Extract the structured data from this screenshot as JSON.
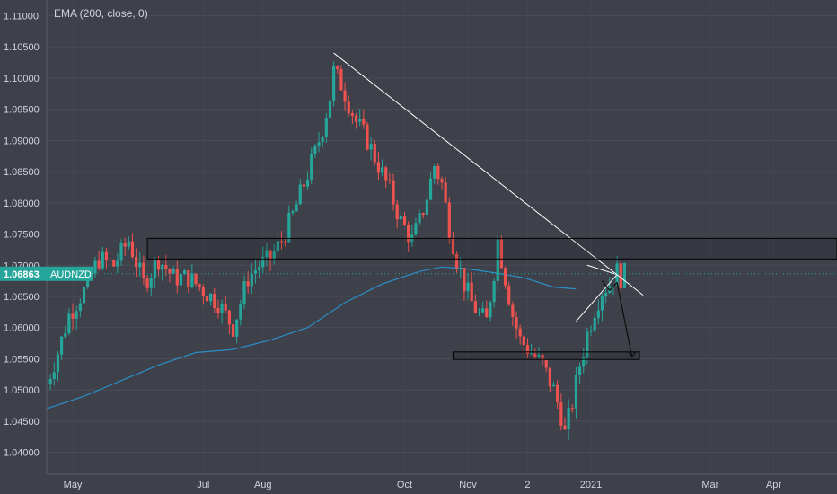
{
  "indicator": {
    "label": "EMA (200, close, 0)"
  },
  "chart_data": {
    "type": "candlestick",
    "symbol": "AUDNZD",
    "last_price": 1.06863,
    "y_ticks": [
      1.04,
      1.045,
      1.05,
      1.055,
      1.06,
      1.065,
      1.07,
      1.075,
      1.08,
      1.085,
      1.09,
      1.095,
      1.1,
      1.105,
      1.11
    ],
    "y_tick_labels": [
      "1.04000",
      "1.04500",
      "1.05000",
      "1.05500",
      "1.06000",
      "1.06500",
      "1.07000",
      "1.07500",
      "1.08000",
      "1.08500",
      "1.09000",
      "1.09500",
      "1.10000",
      "1.10500",
      "1.11000"
    ],
    "ylim": [
      1.0365,
      1.1125
    ],
    "x_ticks": [
      {
        "label": "May",
        "idx": 7
      },
      {
        "label": "Jul",
        "idx": 42
      },
      {
        "label": "Aug",
        "idx": 58
      },
      {
        "label": "Oct",
        "idx": 96
      },
      {
        "label": "Nov",
        "idx": 113
      },
      {
        "label": "2",
        "idx": 129
      },
      {
        "label": "2021",
        "idx": 146
      },
      {
        "label": "Mar",
        "idx": 178
      },
      {
        "label": "Apr",
        "idx": 195
      }
    ],
    "x_range": [
      0,
      212
    ],
    "colors": {
      "up": "#26a69a",
      "down": "#ef5350",
      "ema": "#2b8fc9",
      "drawing": "#ffffff",
      "price_tag": "#26a69a"
    },
    "ema_200": [
      [
        0,
        1.047
      ],
      [
        10,
        1.049
      ],
      [
        20,
        1.0515
      ],
      [
        30,
        1.054
      ],
      [
        40,
        1.056
      ],
      [
        50,
        1.0565
      ],
      [
        60,
        1.058
      ],
      [
        70,
        1.06
      ],
      [
        80,
        1.064
      ],
      [
        90,
        1.067
      ],
      [
        100,
        1.069
      ],
      [
        106,
        1.0697
      ],
      [
        113,
        1.0694
      ],
      [
        120,
        1.0688
      ],
      [
        128,
        1.068
      ],
      [
        136,
        1.0665
      ],
      [
        142,
        1.0662
      ]
    ],
    "anchors": [
      [
        0,
        1.051
      ],
      [
        3,
        1.056
      ],
      [
        6,
        1.062
      ],
      [
        10,
        1.066
      ],
      [
        14,
        1.071
      ],
      [
        18,
        1.07
      ],
      [
        22,
        1.074
      ],
      [
        26,
        1.067
      ],
      [
        30,
        1.071
      ],
      [
        34,
        1.068
      ],
      [
        38,
        1.068
      ],
      [
        42,
        1.066
      ],
      [
        46,
        1.064
      ],
      [
        50,
        1.06
      ],
      [
        54,
        1.068
      ],
      [
        57,
        1.07
      ],
      [
        60,
        1.071
      ],
      [
        63,
        1.074
      ],
      [
        66,
        1.078
      ],
      [
        69,
        1.083
      ],
      [
        72,
        1.088
      ],
      [
        74,
        1.092
      ],
      [
        76,
        1.097
      ],
      [
        77,
        1.101
      ],
      [
        79,
        1.099
      ],
      [
        81,
        1.096
      ],
      [
        83,
        1.093
      ],
      [
        86,
        1.09
      ],
      [
        89,
        1.086
      ],
      [
        92,
        1.082
      ],
      [
        95,
        1.077
      ],
      [
        98,
        1.074
      ],
      [
        100,
        1.077
      ],
      [
        102,
        1.081
      ],
      [
        104,
        1.086
      ],
      [
        106,
        1.083
      ],
      [
        108,
        1.076
      ],
      [
        110,
        1.071
      ],
      [
        112,
        1.067
      ],
      [
        114,
        1.064
      ],
      [
        116,
        1.062
      ],
      [
        118,
        1.061
      ],
      [
        120,
        1.069
      ],
      [
        121,
        1.074
      ],
      [
        123,
        1.068
      ],
      [
        125,
        1.062
      ],
      [
        127,
        1.058
      ],
      [
        130,
        1.056
      ],
      [
        133,
        1.054
      ],
      [
        136,
        1.05
      ],
      [
        138,
        1.046
      ],
      [
        139,
        1.043
      ],
      [
        141,
        1.048
      ],
      [
        143,
        1.054
      ],
      [
        145,
        1.059
      ],
      [
        147,
        1.063
      ],
      [
        149,
        1.066
      ],
      [
        151,
        1.067
      ],
      [
        153,
        1.069
      ],
      [
        154,
        1.068
      ],
      [
        155,
        1.0686
      ]
    ],
    "drawings": {
      "trendline": [
        [
          77,
          1.104
        ],
        [
          160,
          1.0652
        ]
      ],
      "resistance_zone": {
        "x": [
          27,
          212
        ],
        "y": [
          1.071,
          1.0743
        ]
      },
      "support_zone": {
        "x": [
          109,
          159
        ],
        "y": [
          1.0549,
          1.0561
        ]
      },
      "projection": [
        [
          149,
          1.0675
        ],
        [
          151,
          1.066
        ],
        [
          153,
          1.0672
        ],
        [
          157,
          1.0553
        ]
      ],
      "wedge": [
        [
          142,
          1.061
        ],
        [
          153,
          1.0685
        ],
        [
          145,
          1.07
        ]
      ]
    }
  }
}
